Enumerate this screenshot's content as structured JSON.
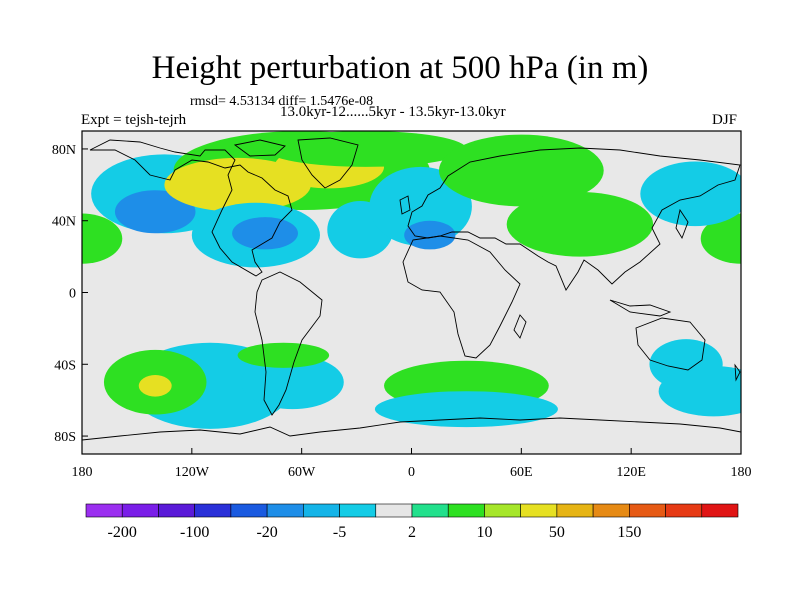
{
  "header": {
    "title": "Height perturbation at 500 hPa (in m)",
    "stats": "rmsd= 4.53134 diff= 1.5476e-08",
    "experiment": "Expt = tejsh-tejrh",
    "period": "13.0kyr-12......5kyr - 13.5kyr-13.0kyr",
    "season": "DJF"
  },
  "map": {
    "projection": "cylindrical-equidistant",
    "lon_range": [
      -180,
      180
    ],
    "lat_range": [
      -90,
      90
    ],
    "x_ticks": [
      {
        "value": -180,
        "label": "180"
      },
      {
        "value": -120,
        "label": "120W"
      },
      {
        "value": -60,
        "label": "60W"
      },
      {
        "value": 0,
        "label": "0"
      },
      {
        "value": 60,
        "label": "60E"
      },
      {
        "value": 120,
        "label": "120E"
      },
      {
        "value": 180,
        "label": "180"
      }
    ],
    "y_ticks": [
      {
        "value": 80,
        "label": "80N"
      },
      {
        "value": 40,
        "label": "40N"
      },
      {
        "value": 0,
        "label": "0"
      },
      {
        "value": -40,
        "label": "40S"
      },
      {
        "value": -80,
        "label": "80S"
      }
    ],
    "background_color": "#e8e8e8"
  },
  "colorbar": {
    "colors": [
      "#9b2ff0",
      "#7a1ee8",
      "#5a1ad8",
      "#2a30d8",
      "#1a5ae0",
      "#1e8ee8",
      "#14b4e8",
      "#14cce6",
      "#e6e6e6",
      "#22e08c",
      "#2ee022",
      "#a6e62a",
      "#e6e022",
      "#e6b414",
      "#e68a14",
      "#e65a14",
      "#e63a14",
      "#e01414"
    ],
    "labels": [
      {
        "boundary": 1,
        "text": "-200"
      },
      {
        "boundary": 3,
        "text": "-100"
      },
      {
        "boundary": 5,
        "text": "-20"
      },
      {
        "boundary": 7,
        "text": "-5"
      },
      {
        "boundary": 9,
        "text": "2"
      },
      {
        "boundary": 11,
        "text": "10"
      },
      {
        "boundary": 13,
        "text": "50"
      },
      {
        "boundary": 15,
        "text": "150"
      }
    ]
  },
  "chart_data": {
    "type": "heatmap",
    "field_units": "m",
    "anomalies": [
      {
        "lon": -180,
        "lat": 30,
        "rx": 22,
        "ry": 14,
        "level": 10
      },
      {
        "lon": 180,
        "lat": 30,
        "rx": 22,
        "ry": 14,
        "level": 10
      },
      {
        "lon": -135,
        "lat": 55,
        "rx": 40,
        "ry": 22,
        "level": -5
      },
      {
        "lon": -140,
        "lat": 45,
        "rx": 22,
        "ry": 12,
        "level": -20
      },
      {
        "lon": -60,
        "lat": 68,
        "rx": 70,
        "ry": 22,
        "level": 10
      },
      {
        "lon": -95,
        "lat": 60,
        "rx": 40,
        "ry": 15,
        "level": 50
      },
      {
        "lon": -45,
        "lat": 70,
        "rx": 30,
        "ry": 12,
        "level": 50
      },
      {
        "lon": -25,
        "lat": 80,
        "rx": 55,
        "ry": 10,
        "level": 10
      },
      {
        "lon": -85,
        "lat": 32,
        "rx": 35,
        "ry": 18,
        "level": -5
      },
      {
        "lon": -80,
        "lat": 33,
        "rx": 18,
        "ry": 9,
        "level": -20
      },
      {
        "lon": -28,
        "lat": 35,
        "rx": 18,
        "ry": 16,
        "level": -5
      },
      {
        "lon": 5,
        "lat": 48,
        "rx": 28,
        "ry": 22,
        "level": -5
      },
      {
        "lon": 10,
        "lat": 32,
        "rx": 14,
        "ry": 8,
        "level": -20
      },
      {
        "lon": 60,
        "lat": 68,
        "rx": 45,
        "ry": 20,
        "level": 10
      },
      {
        "lon": 92,
        "lat": 38,
        "rx": 40,
        "ry": 18,
        "level": 10
      },
      {
        "lon": 155,
        "lat": 55,
        "rx": 30,
        "ry": 18,
        "level": -5
      },
      {
        "lon": -110,
        "lat": -52,
        "rx": 45,
        "ry": 24,
        "level": -5
      },
      {
        "lon": -140,
        "lat": -50,
        "rx": 28,
        "ry": 18,
        "level": 10
      },
      {
        "lon": -140,
        "lat": -52,
        "rx": 9,
        "ry": 6,
        "level": 50
      },
      {
        "lon": -65,
        "lat": -50,
        "rx": 28,
        "ry": 15,
        "level": -5
      },
      {
        "lon": -70,
        "lat": -35,
        "rx": 25,
        "ry": 7,
        "level": 10
      },
      {
        "lon": 30,
        "lat": -52,
        "rx": 45,
        "ry": 14,
        "level": 10
      },
      {
        "lon": 30,
        "lat": -65,
        "rx": 50,
        "ry": 10,
        "level": -5
      },
      {
        "lon": 150,
        "lat": -40,
        "rx": 20,
        "ry": 14,
        "level": -5
      },
      {
        "lon": 165,
        "lat": -55,
        "rx": 30,
        "ry": 14,
        "level": -5
      }
    ]
  }
}
